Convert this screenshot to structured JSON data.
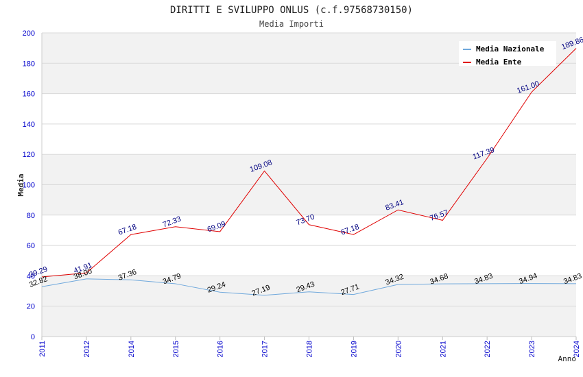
{
  "chart_data": {
    "type": "line",
    "title": "DIRITTI E SVILUPPO ONLUS (c.f.97568730150)",
    "subtitle": "Media Importi",
    "xlabel": "Anno",
    "ylabel": "Media",
    "ylim": [
      0,
      200
    ],
    "yticks": [
      "0",
      "20",
      "40",
      "60",
      "80",
      "100",
      "120",
      "140",
      "160",
      "180",
      "200"
    ],
    "categories": [
      "2011",
      "2012",
      "2014",
      "2015",
      "2016",
      "2017",
      "2018",
      "2019",
      "2020",
      "2021",
      "2022",
      "2023",
      "2024"
    ],
    "series": [
      {
        "name": "Media Nazionale",
        "color": "#6fa8dc",
        "label_color": "#000000",
        "values": [
          32.82,
          38.0,
          37.36,
          34.79,
          29.24,
          27.19,
          29.43,
          27.71,
          34.32,
          34.68,
          34.83,
          34.94,
          34.83
        ],
        "labels": [
          "32.82",
          "38.00",
          "37.36",
          "34.79",
          "29.24",
          "27.19",
          "29.43",
          "27.71",
          "34.32",
          "34.68",
          "34.83",
          "34.94",
          "34.83"
        ]
      },
      {
        "name": "Media Ente",
        "color": "#e00000",
        "label_color": "#000080",
        "values": [
          39.29,
          41.91,
          67.18,
          72.33,
          69.09,
          109.08,
          73.7,
          67.18,
          83.41,
          76.57,
          117.39,
          161.0,
          189.86
        ],
        "labels": [
          "39.29",
          "41.91",
          "67.18",
          "72.33",
          "69.09",
          "109.08",
          "73.70",
          "67.18",
          "83.41",
          "76.57",
          "117.39",
          "161.00",
          "189.86"
        ]
      }
    ],
    "legend": {
      "position": "top-right"
    },
    "grid": true,
    "tick_color": "#0000cc"
  }
}
